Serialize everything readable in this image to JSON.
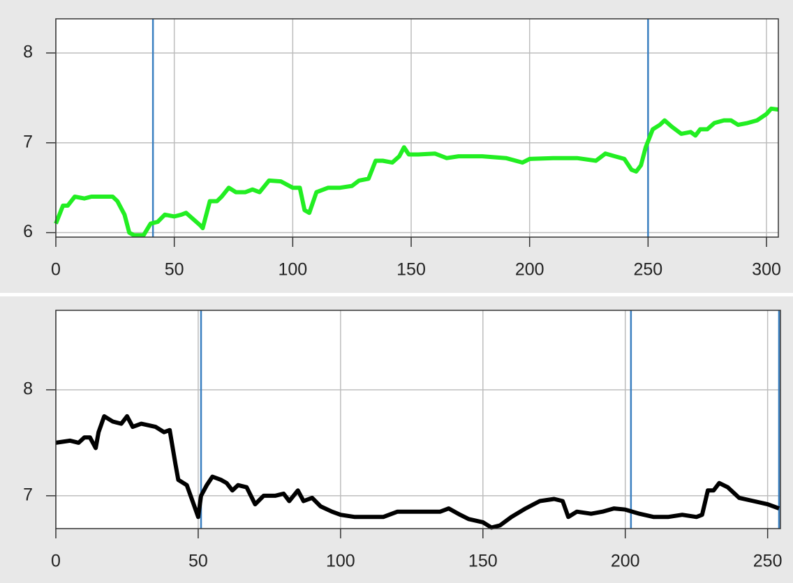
{
  "chart_data": [
    {
      "type": "line",
      "xlim": [
        0,
        305
      ],
      "ylim": [
        5.95,
        8.38
      ],
      "xticks": [
        0,
        50,
        100,
        150,
        200,
        250,
        300
      ],
      "yticks": [
        6,
        7,
        8
      ],
      "grid": true,
      "vlines": [
        41,
        250
      ],
      "vline_color": "#3a7fc0",
      "x": [
        0,
        3,
        5,
        8,
        12,
        15,
        20,
        24,
        26,
        29,
        31,
        33,
        37,
        40,
        43,
        46,
        50,
        53,
        55,
        58,
        61,
        62,
        65,
        68,
        70,
        73,
        76,
        80,
        83,
        86,
        90,
        95,
        100,
        103,
        105,
        107,
        110,
        115,
        120,
        125,
        128,
        132,
        135,
        138,
        142,
        145,
        147,
        149,
        153,
        160,
        165,
        170,
        180,
        190,
        197,
        200,
        210,
        220,
        228,
        232,
        236,
        240,
        243,
        245,
        247,
        249,
        252,
        255,
        257,
        260,
        264,
        268,
        270,
        272,
        275,
        278,
        282,
        285,
        288,
        292,
        296,
        300,
        302,
        305
      ],
      "series": [
        {
          "color": "#22ee22",
          "values": [
            6.1,
            6.3,
            6.3,
            6.4,
            6.38,
            6.4,
            6.4,
            6.4,
            6.35,
            6.2,
            6.0,
            5.97,
            5.97,
            6.1,
            6.12,
            6.2,
            6.18,
            6.2,
            6.22,
            6.15,
            6.08,
            6.05,
            6.35,
            6.35,
            6.4,
            6.5,
            6.45,
            6.45,
            6.48,
            6.45,
            6.58,
            6.57,
            6.5,
            6.5,
            6.25,
            6.22,
            6.45,
            6.5,
            6.5,
            6.52,
            6.58,
            6.6,
            6.8,
            6.8,
            6.78,
            6.85,
            6.95,
            6.87,
            6.87,
            6.88,
            6.83,
            6.85,
            6.85,
            6.83,
            6.78,
            6.82,
            6.83,
            6.83,
            6.8,
            6.88,
            6.85,
            6.82,
            6.7,
            6.68,
            6.75,
            6.95,
            7.15,
            7.2,
            7.25,
            7.18,
            7.1,
            7.12,
            7.08,
            7.15,
            7.15,
            7.22,
            7.25,
            7.25,
            7.2,
            7.22,
            7.25,
            7.32,
            7.38,
            7.37
          ]
        }
      ]
    },
    {
      "type": "line",
      "xlim": [
        0,
        254.5
      ],
      "ylim": [
        6.69,
        8.75
      ],
      "xticks": [
        0,
        50,
        100,
        150,
        200,
        250
      ],
      "yticks": [
        7,
        8
      ],
      "grid": true,
      "vlines": [
        51,
        202,
        254
      ],
      "vline_color": "#3a7fc0",
      "x": [
        0,
        5,
        8,
        10,
        12,
        14,
        15,
        17,
        20,
        23,
        25,
        27,
        30,
        35,
        38,
        40,
        42,
        43,
        46,
        48,
        50,
        51,
        53,
        55,
        58,
        60,
        62,
        64,
        67,
        70,
        73,
        77,
        80,
        82,
        85,
        87,
        90,
        93,
        97,
        100,
        105,
        110,
        115,
        120,
        125,
        130,
        135,
        138,
        142,
        145,
        150,
        153,
        156,
        160,
        165,
        170,
        175,
        178,
        180,
        183,
        188,
        192,
        196,
        200,
        205,
        210,
        215,
        220,
        225,
        227,
        229,
        231,
        233,
        236,
        240,
        245,
        250,
        254
      ],
      "series": [
        {
          "color": "#000000",
          "values": [
            7.5,
            7.52,
            7.5,
            7.55,
            7.55,
            7.45,
            7.6,
            7.75,
            7.7,
            7.68,
            7.75,
            7.65,
            7.68,
            7.65,
            7.6,
            7.62,
            7.3,
            7.15,
            7.1,
            6.95,
            6.8,
            7.0,
            7.1,
            7.18,
            7.15,
            7.12,
            7.05,
            7.1,
            7.08,
            6.92,
            7.0,
            7.0,
            7.02,
            6.95,
            7.05,
            6.95,
            6.98,
            6.9,
            6.85,
            6.82,
            6.8,
            6.8,
            6.8,
            6.85,
            6.85,
            6.85,
            6.85,
            6.88,
            6.82,
            6.78,
            6.75,
            6.7,
            6.72,
            6.8,
            6.88,
            6.95,
            6.97,
            6.95,
            6.8,
            6.85,
            6.83,
            6.85,
            6.88,
            6.87,
            6.83,
            6.8,
            6.8,
            6.82,
            6.8,
            6.82,
            7.05,
            7.05,
            7.12,
            7.08,
            6.98,
            6.95,
            6.92,
            6.88
          ]
        }
      ]
    }
  ]
}
